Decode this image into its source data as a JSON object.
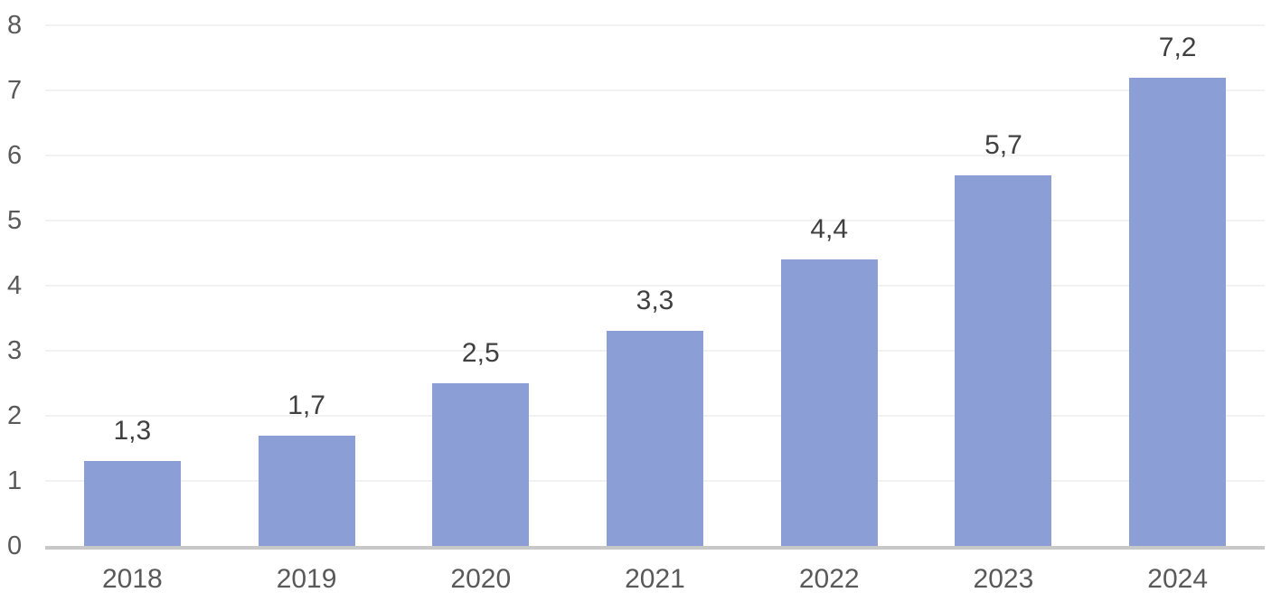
{
  "chart_data": {
    "type": "bar",
    "title": "",
    "xlabel": "",
    "ylabel": "",
    "categories": [
      "2018",
      "2019",
      "2020",
      "2021",
      "2022",
      "2023",
      "2024"
    ],
    "series": [
      {
        "name": "values",
        "values": [
          1.3,
          1.7,
          2.5,
          3.3,
          4.4,
          5.7,
          7.2
        ],
        "value_labels": [
          "1,3",
          "1,7",
          "2,5",
          "3,3",
          "4,4",
          "5,7",
          "7,2"
        ]
      }
    ],
    "ylim": [
      0,
      8
    ],
    "yticks": [
      0,
      1,
      2,
      3,
      4,
      5,
      6,
      7,
      8
    ],
    "ytick_labels": [
      "0",
      "1",
      "2",
      "3",
      "4",
      "5",
      "6",
      "7",
      "8"
    ],
    "grid": true,
    "legend": false,
    "colors": {
      "bar_fill": "#8b9fd6",
      "gridline": "#f2f2f2",
      "axis_line": "#c8c8c8",
      "tick_label": "#595959",
      "data_label": "#404040",
      "background": "#ffffff"
    }
  }
}
